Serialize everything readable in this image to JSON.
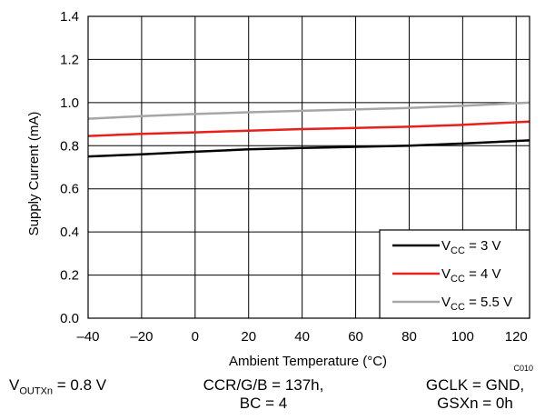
{
  "chart_data": {
    "type": "line",
    "xlabel": "Ambient Temperature (°C)",
    "ylabel": "Supply Current (mA)",
    "xlim": [
      -40,
      125
    ],
    "ylim": [
      0,
      1.4
    ],
    "x_ticks": [
      -40,
      -20,
      0,
      20,
      40,
      60,
      80,
      100,
      120
    ],
    "x_tick_labels": [
      "–40",
      "–20",
      "0",
      "20",
      "40",
      "60",
      "80",
      "100",
      "120"
    ],
    "y_ticks": [
      0,
      0.2,
      0.4,
      0.6,
      0.8,
      1.0,
      1.2,
      1.4
    ],
    "y_tick_labels": [
      "0.0",
      "0.2",
      "0.4",
      "0.6",
      "0.8",
      "1.0",
      "1.2",
      "1.4"
    ],
    "grid": true,
    "legend_position": "bottom-right",
    "series": [
      {
        "name": "VCC = 3 V",
        "name_main": "V",
        "name_sub": "CC",
        "name_rest": " = 3 V",
        "color": "#000000",
        "x": [
          -40,
          -20,
          0,
          20,
          40,
          60,
          80,
          100,
          125
        ],
        "y": [
          0.75,
          0.76,
          0.772,
          0.783,
          0.79,
          0.795,
          0.8,
          0.81,
          0.825
        ]
      },
      {
        "name": "VCC = 4 V",
        "name_main": "V",
        "name_sub": "CC",
        "name_rest": " = 4 V",
        "color": "#e8201a",
        "x": [
          -40,
          -20,
          0,
          20,
          40,
          60,
          80,
          100,
          125
        ],
        "y": [
          0.845,
          0.855,
          0.862,
          0.87,
          0.877,
          0.882,
          0.888,
          0.897,
          0.912
        ]
      },
      {
        "name": "VCC = 5.5 V",
        "name_main": "V",
        "name_sub": "CC",
        "name_rest": " = 5.5 V",
        "color": "#a6a6a6",
        "x": [
          -40,
          -20,
          0,
          20,
          40,
          60,
          80,
          100,
          125
        ],
        "y": [
          0.925,
          0.937,
          0.947,
          0.955,
          0.962,
          0.968,
          0.975,
          0.985,
          1.0
        ]
      }
    ],
    "annotations": [
      "C010"
    ]
  },
  "conditions": {
    "vout": {
      "main": "V",
      "sub": "OUTXn",
      "rest": " = 0.8 V"
    },
    "ccr_line1": "CCR/G/B = 137h,",
    "ccr_line2": "BC = 4",
    "gclk_line1": "GCLK = GND,",
    "gclk_line2": "GSXn = 0h"
  }
}
